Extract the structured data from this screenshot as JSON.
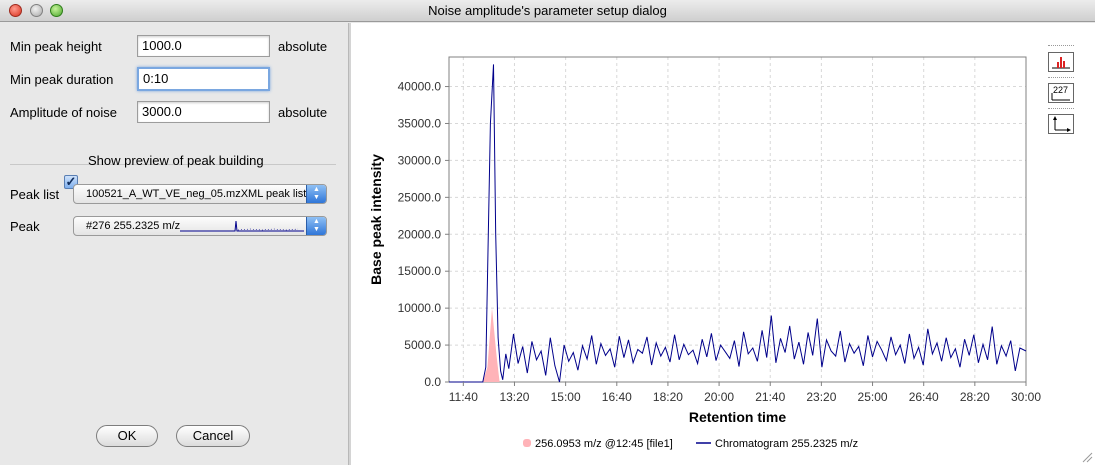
{
  "window": {
    "title": "Noise amplitude's parameter setup dialog"
  },
  "params": {
    "min_peak_height": {
      "label": "Min peak height",
      "value": "1000.0",
      "unit": "absolute"
    },
    "min_peak_duration": {
      "label": "Min peak duration",
      "value": "0:10"
    },
    "amplitude_of_noise": {
      "label": "Amplitude of noise",
      "value": "3000.0",
      "unit": "absolute"
    }
  },
  "preview": {
    "label": "Show preview of peak building",
    "checked": true
  },
  "peak_list": {
    "label": "Peak list",
    "value": "100521_A_WT_VE_neg_05.mzXML peak list"
  },
  "peak": {
    "label": "Peak",
    "value": "#276 255.2325 m/z"
  },
  "buttons": {
    "ok": "OK",
    "cancel": "Cancel"
  },
  "toolbar_icons": [
    "histogram-icon",
    "data-label-icon",
    "axes-icon"
  ],
  "toolbar_icon_text": {
    "data_label": "227"
  },
  "legend": {
    "peak_series": "256.0953 m/z @12:45 [file1]",
    "chromatogram_series": "Chromatogram 255.2325 m/z"
  },
  "colors": {
    "peak_fill": "#ffb3b8",
    "chromatogram": "#00008b",
    "grid": "#d8d8d8"
  },
  "chart_data": {
    "type": "line",
    "title": "",
    "xlabel": "Retention time",
    "ylabel": "Base peak intensity",
    "x_tick_labels": [
      "11:40",
      "13:20",
      "15:00",
      "16:40",
      "18:20",
      "20:00",
      "21:40",
      "23:20",
      "25:00",
      "26:40",
      "28:20",
      "30:00"
    ],
    "x_ticks_minutes": [
      11.667,
      13.333,
      15.0,
      16.667,
      18.333,
      20.0,
      21.667,
      23.333,
      25.0,
      26.667,
      28.333,
      30.0
    ],
    "y_tick_labels": [
      "0.0",
      "5000.0",
      "10000.0",
      "15000.0",
      "20000.0",
      "25000.0",
      "30000.0",
      "35000.0",
      "40000.0"
    ],
    "xlim_minutes": [
      11.2,
      30.0
    ],
    "ylim": [
      0,
      44000
    ],
    "grid": true,
    "legend_position": "bottom",
    "series": [
      {
        "name": "256.0953 m/z @12:45 [file1]",
        "type": "area",
        "x_minutes": [
          12.3,
          12.45,
          12.6,
          12.75,
          12.85
        ],
        "values": [
          0,
          2000,
          10000,
          3500,
          0
        ]
      },
      {
        "name": "Chromatogram 255.2325 m/z",
        "type": "line",
        "x_minutes": [
          11.2,
          12.3,
          12.4,
          12.55,
          12.65,
          12.72,
          12.8,
          12.88,
          12.95,
          13.05,
          13.15,
          13.3,
          13.45,
          13.6,
          13.75,
          13.9,
          14.05,
          14.2,
          14.35,
          14.5,
          14.65,
          14.8,
          14.95,
          15.1,
          15.25,
          15.4,
          15.55,
          15.7,
          15.85,
          16.0,
          16.15,
          16.3,
          16.45,
          16.6,
          16.75,
          16.9,
          17.05,
          17.2,
          17.35,
          17.5,
          17.65,
          17.8,
          17.95,
          18.1,
          18.25,
          18.4,
          18.55,
          18.7,
          18.85,
          19.0,
          19.15,
          19.3,
          19.45,
          19.6,
          19.75,
          19.9,
          20.05,
          20.2,
          20.35,
          20.5,
          20.65,
          20.8,
          20.95,
          21.1,
          21.25,
          21.4,
          21.55,
          21.7,
          21.85,
          22.0,
          22.15,
          22.3,
          22.45,
          22.6,
          22.75,
          22.9,
          23.05,
          23.2,
          23.35,
          23.5,
          23.65,
          23.8,
          23.95,
          24.1,
          24.25,
          24.4,
          24.55,
          24.7,
          24.85,
          25.0,
          25.15,
          25.3,
          25.45,
          25.6,
          25.75,
          25.9,
          26.05,
          26.2,
          26.35,
          26.5,
          26.65,
          26.8,
          26.95,
          27.1,
          27.25,
          27.4,
          27.55,
          27.7,
          27.85,
          28.0,
          28.15,
          28.3,
          28.45,
          28.6,
          28.75,
          28.9,
          29.05,
          29.2,
          29.35,
          29.5,
          29.65,
          29.8,
          30.0
        ],
        "values": [
          0,
          0,
          2000,
          35000,
          43000,
          20000,
          6000,
          1500,
          300,
          3800,
          1800,
          6500,
          2500,
          4800,
          1200,
          5500,
          3000,
          4200,
          900,
          6000,
          2200,
          0,
          5000,
          2800,
          4000,
          1600,
          4900,
          3100,
          6300,
          2400,
          5200,
          3600,
          4500,
          2000,
          6200,
          3300,
          5700,
          2600,
          4400,
          3900,
          6100,
          2300,
          5300,
          3500,
          4700,
          2700,
          6400,
          3000,
          5100,
          3700,
          4300,
          2500,
          5800,
          3400,
          6600,
          2900,
          5000,
          4100,
          3200,
          5600,
          2100,
          6800,
          3800,
          4600,
          2800,
          7000,
          3300,
          9000,
          2600,
          5900,
          4000,
          7600,
          3100,
          5400,
          2400,
          6700,
          3600,
          8600,
          2000,
          5700,
          4200,
          3500,
          6900,
          2700,
          5200,
          3900,
          4800,
          2200,
          6300,
          3400,
          5500,
          4300,
          2900,
          6100,
          3700,
          5000,
          2500,
          6500,
          3200,
          4700,
          2300,
          7200,
          3800,
          5300,
          2800,
          6000,
          3300,
          4500,
          2000,
          5800,
          3600,
          6400,
          2600,
          5100,
          3000,
          7500,
          2400,
          4900,
          3500,
          5600,
          1500,
          4600,
          4200
        ]
      }
    ]
  }
}
